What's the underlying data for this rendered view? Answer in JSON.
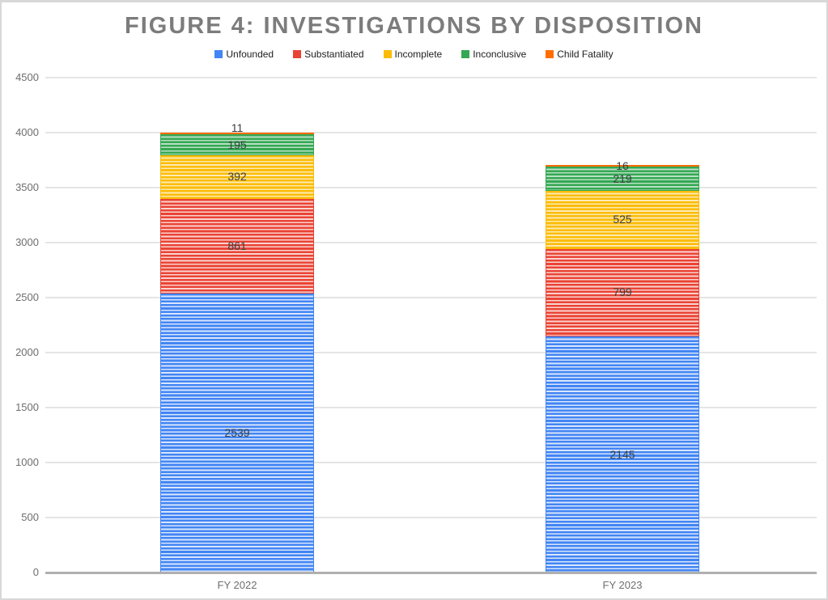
{
  "title": "FIGURE 4: INVESTIGATIONS BY DISPOSITION",
  "chart_data": {
    "type": "bar",
    "stacked": true,
    "title": "FIGURE 4: INVESTIGATIONS BY DISPOSITION",
    "categories": [
      "FY 2022",
      "FY 2023"
    ],
    "series": [
      {
        "name": "Unfounded",
        "color": "#4285F4",
        "light": "#d9e6fc",
        "values": [
          2539,
          2145
        ]
      },
      {
        "name": "Substantiated",
        "color": "#EA4335",
        "light": "#fad4d0",
        "values": [
          861,
          799
        ]
      },
      {
        "name": "Incomplete",
        "color": "#FBBC04",
        "light": "#fdeab4",
        "values": [
          392,
          525
        ]
      },
      {
        "name": "Inconclusive",
        "color": "#34A853",
        "light": "#b9dfc4",
        "values": [
          195,
          219
        ]
      },
      {
        "name": "Child Fatality",
        "color": "#FF6D01",
        "light": "#ffd6b3",
        "values": [
          11,
          16
        ]
      }
    ],
    "totals": [
      3998,
      3704
    ],
    "xlabel": "",
    "ylabel": "",
    "ylim": [
      0,
      4500
    ],
    "yticks": [
      0,
      500,
      1000,
      1500,
      2000,
      2500,
      3000,
      3500,
      4000,
      4500
    ],
    "grid": true,
    "legend_position": "top",
    "bar_pattern": "horizontal-stripes"
  }
}
